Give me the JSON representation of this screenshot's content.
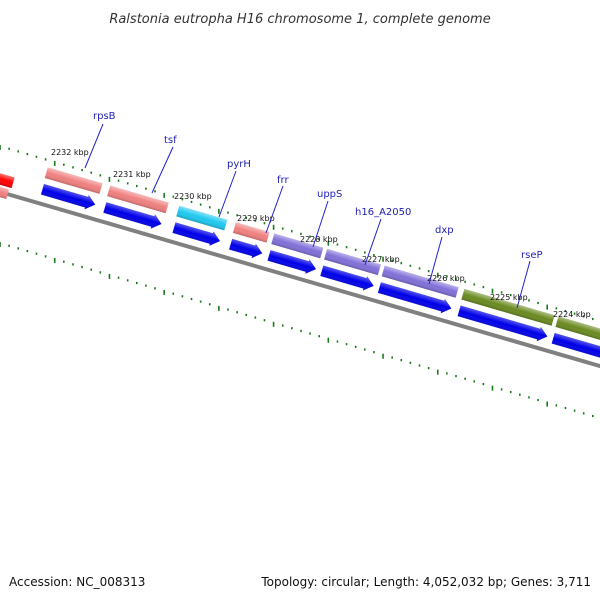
{
  "title": "Ralstonia eutropha H16 chromosome 1, complete genome",
  "footer": {
    "accession": "Accession: NC_008313",
    "topology": "Topology: circular; Length: 4,052,032 bp; Genes: 3,711"
  },
  "ticks": [
    "2232 kbp",
    "2231 kbp",
    "2230 kbp",
    "2229 kbp",
    "2228 kbp",
    "2227 kbp",
    "2226 kbp",
    "2225 kbp",
    "2224 kbp"
  ],
  "genes": [
    {
      "name": "rpsB",
      "color": "#f08080"
    },
    {
      "name": "tsf",
      "color": "#f08080"
    },
    {
      "name": "pyrH",
      "color": "#1ec8f0"
    },
    {
      "name": "frr",
      "color": "#f08080"
    },
    {
      "name": "uppS",
      "color": "#8070d8"
    },
    {
      "name": "h16_A2050",
      "color": "#8070d8"
    },
    {
      "name": "dxp",
      "color": "#8070d8"
    },
    {
      "name": "rseP",
      "color": "#6a8a20"
    }
  ],
  "colors": {
    "backbone": "#808080",
    "cds": "#0000e8",
    "tick_marks": "#1a7a1a",
    "label_lines": "#2020d0",
    "red_feature": "#ff0000"
  }
}
